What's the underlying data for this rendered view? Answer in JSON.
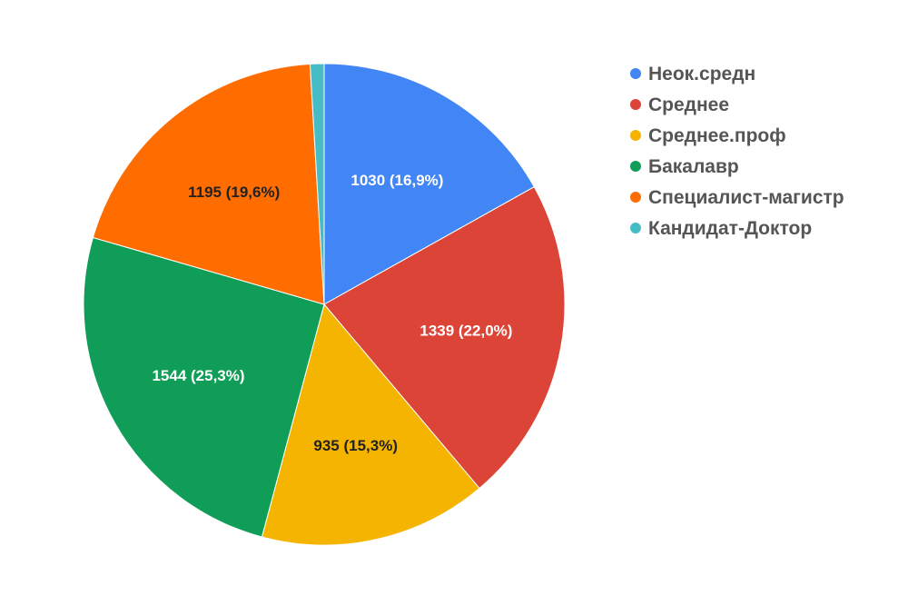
{
  "chart_data": {
    "type": "pie",
    "categories": [
      "Неок.средн",
      "Среднее",
      "Среднее.проф",
      "Бакалавр",
      "Специалист-магистр",
      "Кандидат-Доктор"
    ],
    "values": [
      1030,
      1339,
      935,
      1544,
      1195,
      57
    ],
    "data_labels": [
      "1030 (16,9%)",
      "1339 (22,0%)",
      "935 (15,3%)",
      "1544 (25,3%)",
      "1195 (19,6%)",
      ""
    ],
    "colors": [
      "#4285f4",
      "#db4437",
      "#f4b400",
      "#0f9d58",
      "#ff6d00",
      "#46bdc6"
    ],
    "label_colors": [
      "#ffffff",
      "#ffffff",
      "#222222",
      "#ffffff",
      "#222222",
      "#ffffff"
    ],
    "start_angle_deg": 0,
    "direction": "clockwise",
    "legend_position": "right",
    "title": ""
  }
}
